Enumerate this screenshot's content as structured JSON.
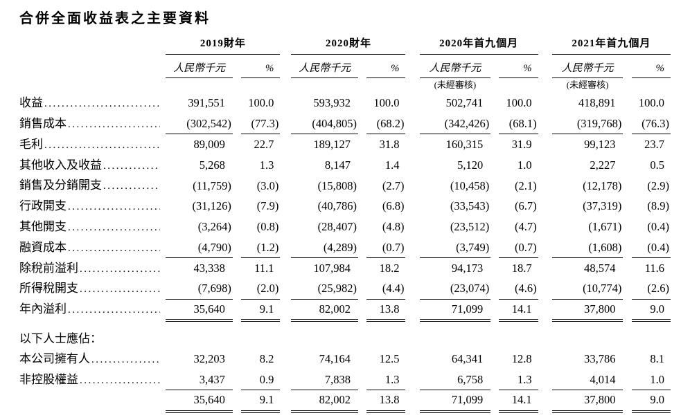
{
  "page": {
    "title": "合併全面收益表之主要資料"
  },
  "table": {
    "groups": [
      {
        "label": "2019財年",
        "unit": "人民幣千元",
        "pct": "%",
        "note": ""
      },
      {
        "label": "2020財年",
        "unit": "人民幣千元",
        "pct": "%",
        "note": ""
      },
      {
        "label": "2020年首九個月",
        "unit": "人民幣千元",
        "pct": "%",
        "note": "(未經審核)"
      },
      {
        "label": "2021年首九個月",
        "unit": "人民幣千元",
        "pct": "%",
        "note": "(未經審核)"
      }
    ],
    "rows": [
      {
        "label": "收益",
        "leader": true,
        "rule": "none",
        "section": false,
        "values": [
          "391,551",
          "100.0",
          "593,932",
          "100.0",
          "502,741",
          "100.0",
          "418,891",
          "100.0"
        ]
      },
      {
        "label": "銷售成本",
        "leader": true,
        "rule": "single",
        "section": false,
        "values": [
          "(302,542)",
          "(77.3)",
          "(404,805)",
          "(68.2)",
          "(342,426)",
          "(68.1)",
          "(319,768)",
          "(76.3)"
        ]
      },
      {
        "label": "毛利",
        "leader": true,
        "rule": "none",
        "section": false,
        "values": [
          "89,009",
          "22.7",
          "189,127",
          "31.8",
          "160,315",
          "31.9",
          "99,123",
          "23.7"
        ]
      },
      {
        "label": "其他收入及收益",
        "leader": true,
        "rule": "none",
        "section": false,
        "values": [
          "5,268",
          "1.3",
          "8,147",
          "1.4",
          "5,120",
          "1.0",
          "2,227",
          "0.5"
        ]
      },
      {
        "label": "銷售及分銷開支",
        "leader": true,
        "rule": "none",
        "section": false,
        "values": [
          "(11,759)",
          "(3.0)",
          "(15,808)",
          "(2.7)",
          "(10,458)",
          "(2.1)",
          "(12,178)",
          "(2.9)"
        ]
      },
      {
        "label": "行政開支",
        "leader": true,
        "rule": "none",
        "section": false,
        "values": [
          "(31,126)",
          "(7.9)",
          "(40,786)",
          "(6.8)",
          "(33,543)",
          "(6.7)",
          "(37,319)",
          "(8.9)"
        ]
      },
      {
        "label": "其他開支",
        "leader": true,
        "rule": "none",
        "section": false,
        "values": [
          "(3,264)",
          "(0.8)",
          "(28,407)",
          "(4.8)",
          "(23,512)",
          "(4.7)",
          "(1,671)",
          "(0.4)"
        ]
      },
      {
        "label": "融資成本",
        "leader": true,
        "rule": "single",
        "section": false,
        "values": [
          "(4,790)",
          "(1.2)",
          "(4,289)",
          "(0.7)",
          "(3,749)",
          "(0.7)",
          "(1,608)",
          "(0.4)"
        ]
      },
      {
        "label": "除稅前溢利",
        "leader": true,
        "rule": "none",
        "section": false,
        "values": [
          "43,338",
          "11.1",
          "107,984",
          "18.2",
          "94,173",
          "18.7",
          "48,574",
          "11.6"
        ]
      },
      {
        "label": "所得稅開支",
        "leader": true,
        "rule": "single",
        "section": false,
        "values": [
          "(7,698)",
          "(2.0)",
          "(25,982)",
          "(4.4)",
          "(23,074)",
          "(4.6)",
          "(10,774)",
          "(2.6)"
        ]
      },
      {
        "label": "年內溢利",
        "leader": true,
        "rule": "double",
        "section": false,
        "values": [
          "35,640",
          "9.1",
          "82,002",
          "13.8",
          "71,099",
          "14.1",
          "37,800",
          "9.0"
        ]
      },
      {
        "label": "以下人士應佔：",
        "leader": false,
        "rule": "none",
        "section": true,
        "values": [
          "",
          "",
          "",
          "",
          "",
          "",
          "",
          ""
        ]
      },
      {
        "label": "本公司擁有人",
        "leader": true,
        "rule": "none",
        "section": false,
        "values": [
          "32,203",
          "8.2",
          "74,164",
          "12.5",
          "64,341",
          "12.8",
          "33,786",
          "8.1"
        ]
      },
      {
        "label": "非控股權益",
        "leader": true,
        "rule": "single",
        "section": false,
        "values": [
          "3,437",
          "0.9",
          "7,838",
          "1.3",
          "6,758",
          "1.3",
          "4,014",
          "1.0"
        ]
      },
      {
        "label": "",
        "leader": false,
        "rule": "double",
        "section": false,
        "values": [
          "35,640",
          "9.1",
          "82,002",
          "13.8",
          "71,099",
          "14.1",
          "37,800",
          "9.0"
        ]
      }
    ]
  }
}
